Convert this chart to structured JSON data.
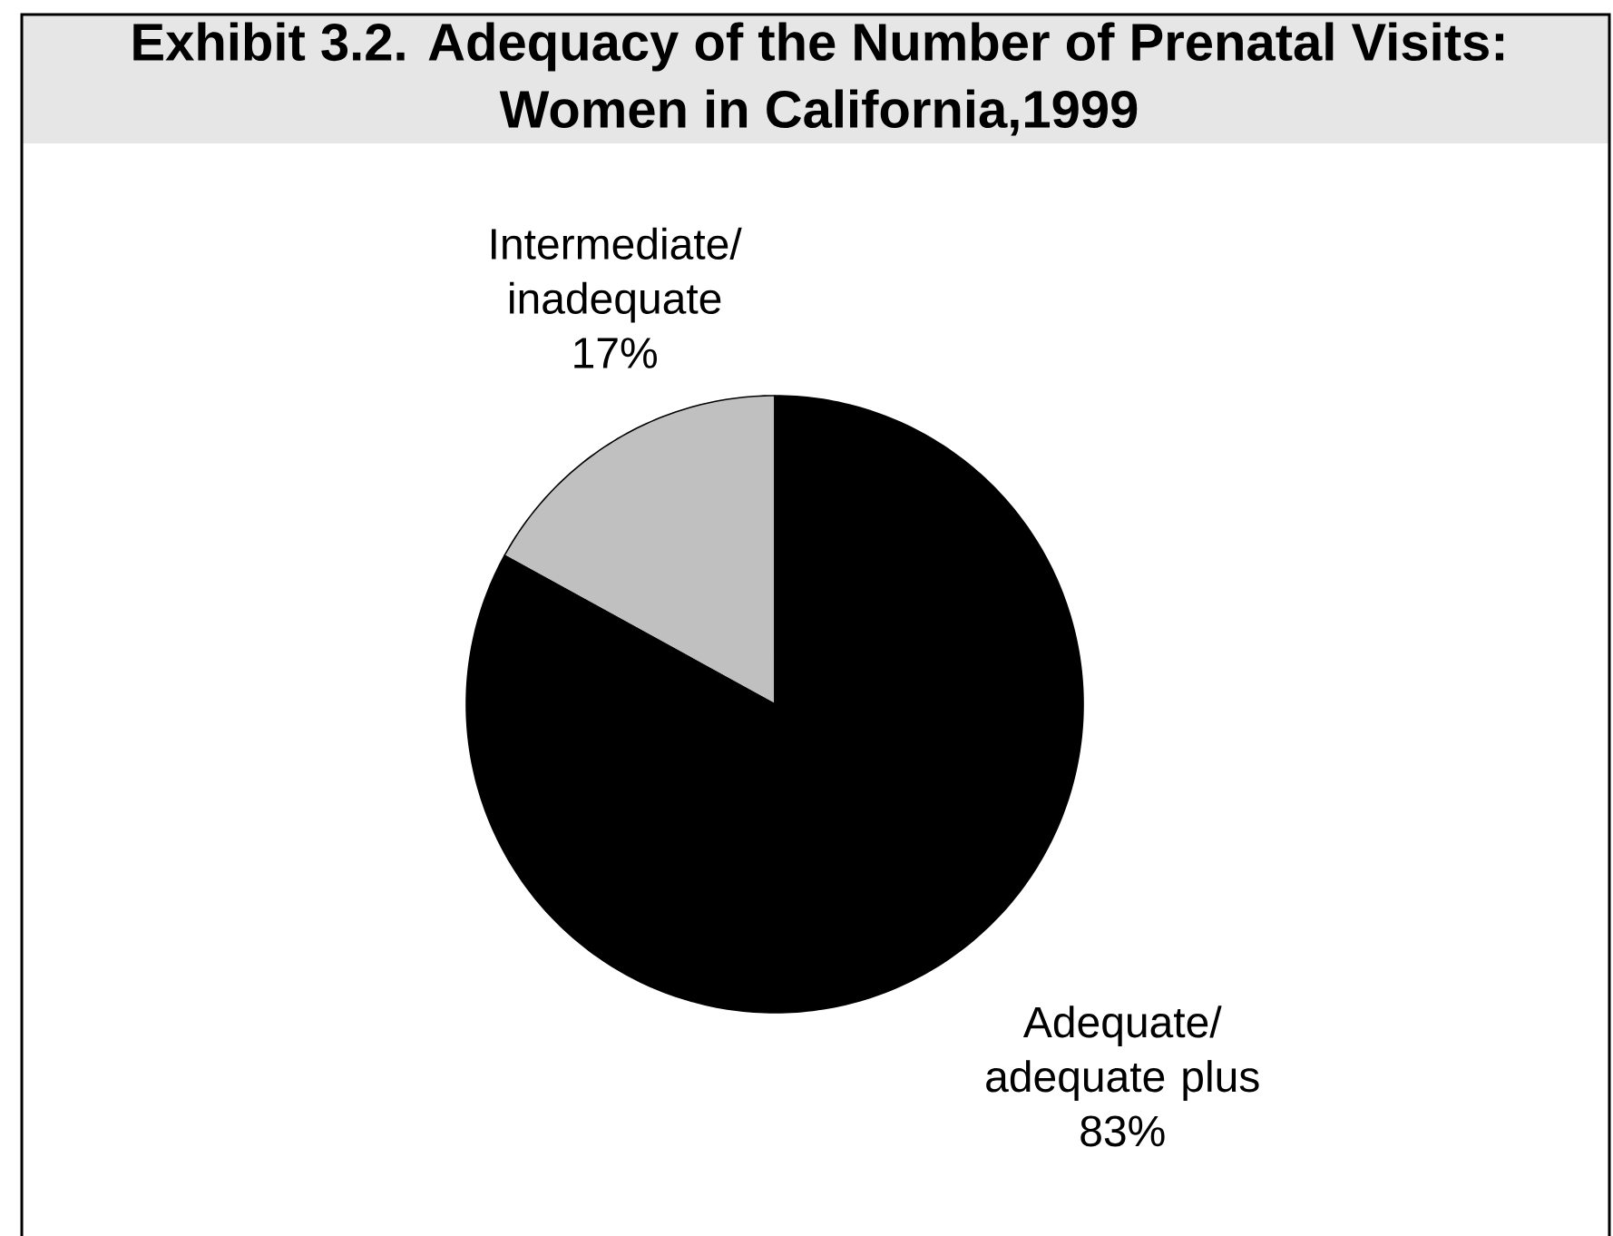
{
  "chart_data": {
    "type": "pie",
    "title": "Exhibit 3.2. Adequacy of the Number of Prenatal Visits: Women in California,1999",
    "categories": [
      "Intermediate/ inadequate",
      "Adequate/ adequate plus"
    ],
    "values": [
      17,
      83
    ],
    "colors": [
      "#c0c0c0",
      "#000000"
    ],
    "value_labels": [
      "17%",
      "83%"
    ]
  }
}
